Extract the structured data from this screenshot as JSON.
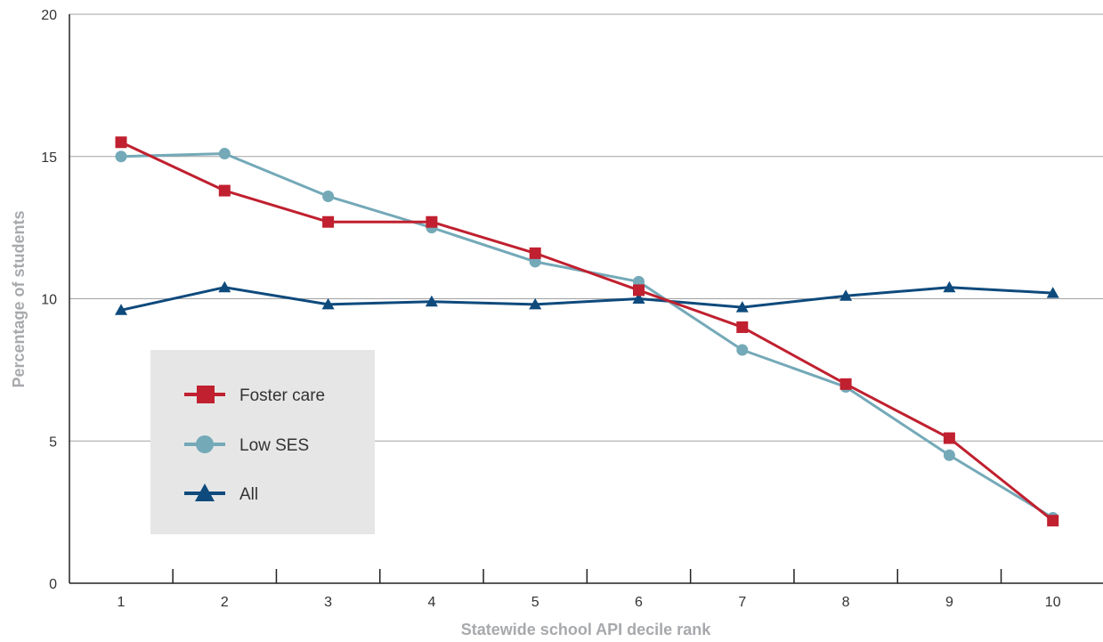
{
  "chart_data": {
    "type": "line",
    "title": "",
    "xlabel": "Statewide school API decile rank",
    "ylabel": "Percentage of students",
    "categories": [
      "1",
      "2",
      "3",
      "4",
      "5",
      "6",
      "7",
      "8",
      "9",
      "10"
    ],
    "ylim": [
      0,
      20
    ],
    "yticks": [
      "0",
      "5",
      "10",
      "15",
      "20"
    ],
    "grid": "horizontal",
    "legend_placement": "lower-left",
    "series": [
      {
        "name": "Foster care",
        "marker": "square",
        "color": "#c0202f",
        "values": [
          15.5,
          13.8,
          12.7,
          12.7,
          11.6,
          10.3,
          9.0,
          7.0,
          5.1,
          2.2
        ]
      },
      {
        "name": "Low SES",
        "marker": "circle",
        "color": "#74a9b8",
        "values": [
          15.0,
          15.1,
          13.6,
          12.5,
          11.3,
          10.6,
          8.2,
          6.9,
          4.5,
          2.3
        ]
      },
      {
        "name": "All",
        "marker": "triangle",
        "color": "#0e4a7c",
        "values": [
          9.6,
          10.4,
          9.8,
          9.9,
          9.8,
          10.0,
          9.7,
          10.1,
          10.4,
          10.2
        ]
      }
    ]
  }
}
